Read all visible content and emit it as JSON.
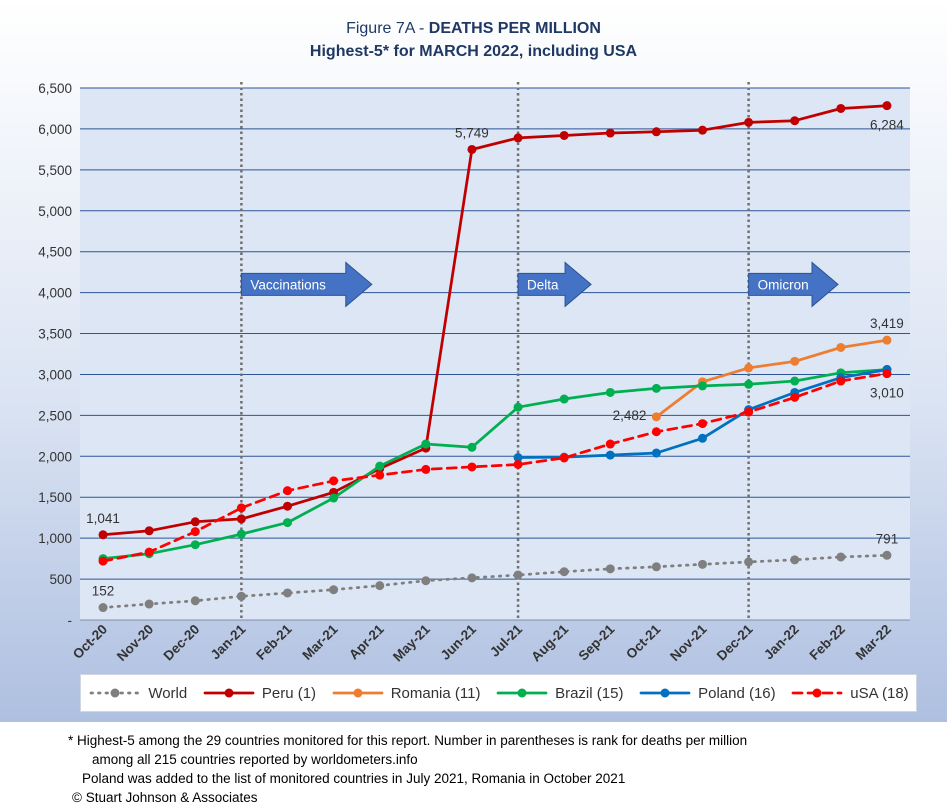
{
  "title_prefix": "Figure 7A - ",
  "title_emphasis": "DEATHS PER MILLION",
  "subtitle": "Highest-5* for MARCH 2022, including USA",
  "colors": {
    "world": "#7f7f7f",
    "peru": "#c00000",
    "romania": "#ed7d31",
    "brazil": "#00b050",
    "poland": "#0070c0",
    "usa": "#ff0000",
    "gridline": "#2e5597",
    "arrow": "#4472c4"
  },
  "chart_data": {
    "type": "line",
    "categories": [
      "Oct-20",
      "Nov-20",
      "Dec-20",
      "Jan-21",
      "Feb-21",
      "Mar-21",
      "Apr-21",
      "May-21",
      "Jun-21",
      "Jul-21",
      "Aug-21",
      "Sep-21",
      "Oct-21",
      "Nov-21",
      "Dec-21",
      "Jan-22",
      "Feb-22",
      "Mar-22"
    ],
    "ylim": [
      0,
      6500
    ],
    "yticks": [
      0,
      500,
      1000,
      1500,
      2000,
      2500,
      3000,
      3500,
      4000,
      4500,
      5000,
      5500,
      6000,
      6500
    ],
    "ytick_labels": [
      "-",
      "500",
      "1,000",
      "1,500",
      "2,000",
      "2,500",
      "3,000",
      "3,500",
      "4,000",
      "4,500",
      "5,000",
      "5,500",
      "6,000",
      "6,500"
    ],
    "grid": true,
    "legend_position": "bottom",
    "series": [
      {
        "key": "world",
        "name": "World",
        "style": "dotted",
        "values": [
          152,
          195,
          235,
          290,
          330,
          370,
          420,
          480,
          515,
          550,
          590,
          625,
          650,
          680,
          710,
          735,
          770,
          791
        ]
      },
      {
        "key": "peru",
        "name": "Peru (1)",
        "style": "solid",
        "values": [
          1041,
          1090,
          1200,
          1235,
          1390,
          1560,
          1850,
          2100,
          5749,
          5890,
          5920,
          5950,
          5965,
          5985,
          6080,
          6100,
          6250,
          6284
        ]
      },
      {
        "key": "romania",
        "name": "Romania (11)",
        "style": "solid",
        "values": [
          null,
          null,
          null,
          null,
          null,
          null,
          null,
          null,
          null,
          null,
          null,
          null,
          2482,
          2910,
          3080,
          3160,
          3330,
          3419
        ]
      },
      {
        "key": "brazil",
        "name": "Brazil (15)",
        "style": "solid",
        "values": [
          750,
          810,
          920,
          1050,
          1190,
          1490,
          1880,
          2150,
          2110,
          2600,
          2700,
          2780,
          2830,
          2860,
          2880,
          2920,
          3020,
          3060
        ]
      },
      {
        "key": "poland",
        "name": "Poland (16)",
        "style": "solid",
        "values": [
          null,
          null,
          null,
          null,
          null,
          null,
          null,
          null,
          null,
          1985,
          1990,
          2015,
          2040,
          2220,
          2570,
          2780,
          2960,
          3060
        ]
      },
      {
        "key": "usa",
        "name": "uSA (18)",
        "style": "dashed",
        "values": [
          720,
          830,
          1080,
          1370,
          1580,
          1700,
          1770,
          1840,
          1870,
          1900,
          1980,
          2150,
          2300,
          2400,
          2540,
          2720,
          2920,
          3010
        ]
      }
    ],
    "data_labels": [
      {
        "series": "peru",
        "index": 0,
        "text": "1,041",
        "pos": "above"
      },
      {
        "series": "world",
        "index": 0,
        "text": "152",
        "pos": "above"
      },
      {
        "series": "peru",
        "index": 8,
        "text": "5,749",
        "pos": "above"
      },
      {
        "series": "peru",
        "index": 17,
        "text": "6,284",
        "pos": "below"
      },
      {
        "series": "romania",
        "index": 12,
        "text": "2,482",
        "pos": "left"
      },
      {
        "series": "romania",
        "index": 17,
        "text": "3,419",
        "pos": "above"
      },
      {
        "series": "usa",
        "index": 17,
        "text": "3,010",
        "pos": "below"
      },
      {
        "series": "world",
        "index": 17,
        "text": "791",
        "pos": "above"
      }
    ],
    "vlines": [
      3,
      9,
      14
    ],
    "annotations": [
      {
        "name": "vaccinations-arrow",
        "text": "Vaccinations",
        "x_index": 3.0,
        "value": 4100
      },
      {
        "name": "delta-arrow",
        "text": "Delta",
        "x_index": 9.0,
        "value": 4100
      },
      {
        "name": "omicron-arrow",
        "text": "Omicron",
        "x_index": 14.0,
        "value": 4100
      }
    ]
  },
  "footnotes": [
    "* Highest-5 among the 29 countries monitored for this report. Number in parentheses is rank for deaths per million",
    "among all 215 countries reported by worldometers.info",
    "Poland was added to the list of monitored countries in July 2021, Romania in October 2021",
    "© Stuart Johnson & Associates"
  ]
}
